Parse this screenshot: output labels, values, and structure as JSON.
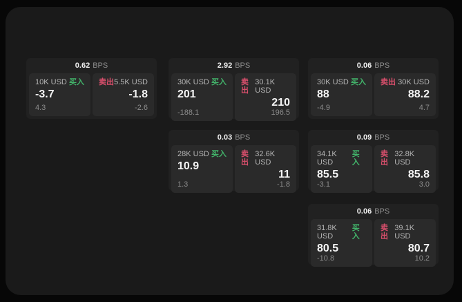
{
  "colors": {
    "buy_accent": "#42b36a",
    "sell_accent": "#d94f6c",
    "panel_bg": "#1a1a1a",
    "card_bg": "#212121",
    "tile_bg": "#2a2a2a"
  },
  "labels": {
    "buy": "买入",
    "sell": "卖出",
    "bps_suffix": "BPS"
  },
  "cards": [
    {
      "col": 0,
      "row": 0,
      "bps": "0.62",
      "buy": {
        "amount": "10K USD",
        "price": "-3.7",
        "delta": "4.3"
      },
      "sell": {
        "amount": "5.5K USD",
        "price": "-1.8",
        "delta": "-2.6"
      }
    },
    {
      "col": 1,
      "row": 0,
      "bps": "2.92",
      "buy": {
        "amount": "30K USD",
        "price": "201",
        "delta": "-188.1"
      },
      "sell": {
        "amount": "30.1K USD",
        "price": "210",
        "delta": "196.5"
      }
    },
    {
      "col": 2,
      "row": 0,
      "bps": "0.06",
      "buy": {
        "amount": "30K USD",
        "price": "88",
        "delta": "-4.9"
      },
      "sell": {
        "amount": "30K USD",
        "price": "88.2",
        "delta": "4.7"
      }
    },
    {
      "col": 1,
      "row": 1,
      "bps": "0.03",
      "buy": {
        "amount": "28K USD",
        "price": "10.9",
        "delta": "1.3"
      },
      "sell": {
        "amount": "32.6K USD",
        "price": "11",
        "delta": "-1.8"
      }
    },
    {
      "col": 2,
      "row": 1,
      "bps": "0.09",
      "buy": {
        "amount": "34.1K USD",
        "price": "85.5",
        "delta": "-3.1"
      },
      "sell": {
        "amount": "32.8K USD",
        "price": "85.8",
        "delta": "3.0"
      }
    },
    {
      "col": 2,
      "row": 2,
      "bps": "0.06",
      "buy": {
        "amount": "31.8K USD",
        "price": "80.5",
        "delta": "-10.8"
      },
      "sell": {
        "amount": "39.1K USD",
        "price": "80.7",
        "delta": "10.2"
      }
    }
  ]
}
